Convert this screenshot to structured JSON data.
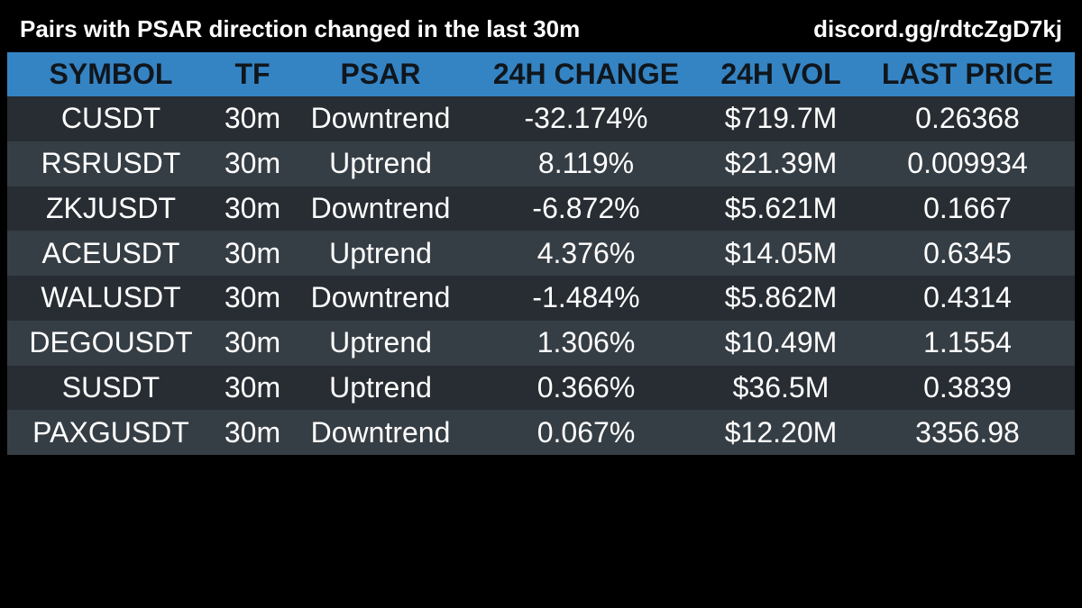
{
  "header": {
    "title": "Pairs with PSAR direction changed in the last 30m",
    "link": "discord.gg/rdtcZgD7kj"
  },
  "colors": {
    "background": "#000000",
    "header_row": "#3484c4",
    "row_odd": "#272d33",
    "row_even": "#363e45",
    "header_text": "#10161c",
    "cell_text": "#ffffff"
  },
  "table": {
    "columns": [
      "SYMBOL",
      "TF",
      "PSAR",
      "24H CHANGE",
      "24H VOL",
      "LAST PRICE"
    ],
    "rows": [
      [
        "CUSDT",
        "30m",
        "Downtrend",
        "-32.174%",
        "$719.7M",
        "0.26368"
      ],
      [
        "RSRUSDT",
        "30m",
        "Uptrend",
        "8.119%",
        "$21.39M",
        "0.009934"
      ],
      [
        "ZKJUSDT",
        "30m",
        "Downtrend",
        "-6.872%",
        "$5.621M",
        "0.1667"
      ],
      [
        "ACEUSDT",
        "30m",
        "Uptrend",
        "4.376%",
        "$14.05M",
        "0.6345"
      ],
      [
        "WALUSDT",
        "30m",
        "Downtrend",
        "-1.484%",
        "$5.862M",
        "0.4314"
      ],
      [
        "DEGOUSDT",
        "30m",
        "Uptrend",
        "1.306%",
        "$10.49M",
        "1.1554"
      ],
      [
        "SUSDT",
        "30m",
        "Uptrend",
        "0.366%",
        "$36.5M",
        "0.3839"
      ],
      [
        "PAXGUSDT",
        "30m",
        "Downtrend",
        "0.067%",
        "$12.20M",
        "3356.98"
      ]
    ]
  }
}
